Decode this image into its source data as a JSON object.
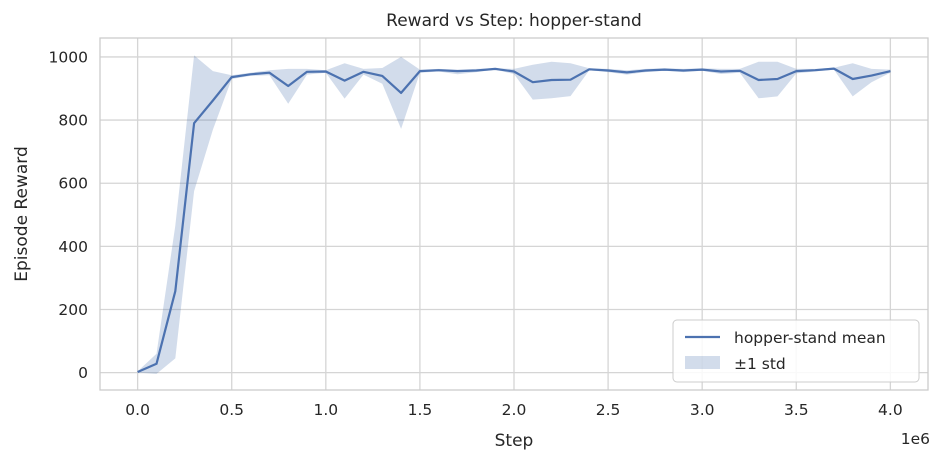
{
  "chart_data": {
    "type": "line",
    "title": "Reward vs Step: hopper-stand",
    "xlabel": "Step",
    "ylabel": "Episode Reward",
    "x_offset_text": "1e6",
    "xlim": [
      -0.2,
      4.2
    ],
    "ylim": [
      -55,
      1060
    ],
    "x_ticks": [
      0.0,
      0.5,
      1.0,
      1.5,
      2.0,
      2.5,
      3.0,
      3.5,
      4.0
    ],
    "x_tick_labels": [
      "0.0",
      "0.5",
      "1.0",
      "1.5",
      "2.0",
      "2.5",
      "3.0",
      "3.5",
      "4.0"
    ],
    "y_ticks": [
      0,
      200,
      400,
      600,
      800,
      1000
    ],
    "y_tick_labels": [
      "0",
      "200",
      "400",
      "600",
      "800",
      "1000"
    ],
    "grid": true,
    "legend_position": "bottom-right",
    "colors": {
      "line": "#4c72b0",
      "band": "#4c72b0"
    },
    "series": [
      {
        "name": "hopper-stand mean",
        "kind": "line",
        "x": [
          0.0,
          0.1,
          0.2,
          0.3,
          0.4,
          0.5,
          0.6,
          0.7,
          0.8,
          0.9,
          1.0,
          1.1,
          1.2,
          1.3,
          1.4,
          1.5,
          1.6,
          1.7,
          1.8,
          1.9,
          2.0,
          2.1,
          2.2,
          2.3,
          2.4,
          2.5,
          2.6,
          2.7,
          2.8,
          2.9,
          3.0,
          3.1,
          3.2,
          3.3,
          3.4,
          3.5,
          3.6,
          3.7,
          3.8,
          3.9,
          4.0
        ],
        "values": [
          2,
          28,
          258,
          790,
          862,
          936,
          945,
          950,
          908,
          953,
          954,
          925,
          953,
          940,
          886,
          955,
          958,
          955,
          957,
          962,
          954,
          920,
          927,
          928,
          961,
          957,
          951,
          957,
          960,
          957,
          960,
          954,
          956,
          927,
          930,
          955,
          958,
          963,
          930,
          941,
          955
        ]
      },
      {
        "name": "±1 std",
        "kind": "band",
        "x": [
          0.0,
          0.1,
          0.2,
          0.3,
          0.4,
          0.5,
          0.6,
          0.7,
          0.8,
          0.9,
          1.0,
          1.1,
          1.2,
          1.3,
          1.4,
          1.5,
          1.6,
          1.7,
          1.8,
          1.9,
          2.0,
          2.1,
          2.2,
          2.3,
          2.4,
          2.5,
          2.6,
          2.7,
          2.8,
          2.9,
          3.0,
          3.1,
          3.2,
          3.3,
          3.4,
          3.5,
          3.6,
          3.7,
          3.8,
          3.9,
          4.0
        ],
        "upper": [
          4,
          60,
          465,
          1005,
          955,
          942,
          950,
          958,
          962,
          962,
          958,
          980,
          962,
          965,
          1000,
          960,
          962,
          960,
          962,
          964,
          962,
          975,
          985,
          980,
          964,
          962,
          958,
          962,
          964,
          962,
          964,
          962,
          962,
          985,
          985,
          962,
          962,
          966,
          980,
          962,
          960
        ],
        "lower": [
          0,
          -4,
          45,
          575,
          770,
          930,
          940,
          942,
          852,
          944,
          950,
          868,
          944,
          915,
          772,
          950,
          954,
          945,
          952,
          960,
          946,
          865,
          869,
          876,
          958,
          952,
          944,
          952,
          956,
          952,
          956,
          946,
          950,
          869,
          875,
          948,
          954,
          960,
          875,
          920,
          950
        ]
      }
    ]
  }
}
